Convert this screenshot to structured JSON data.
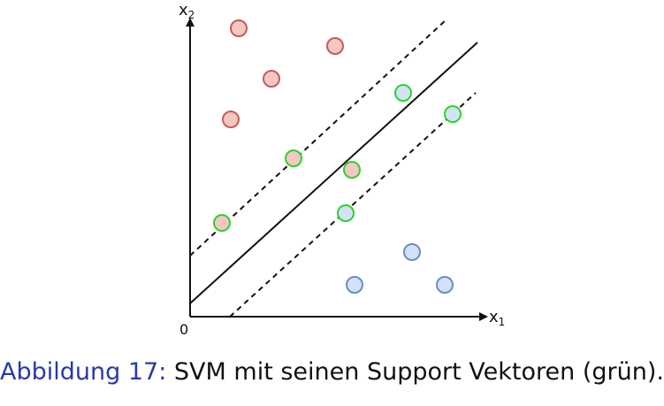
{
  "figure": {
    "axis_labels": {
      "x_main": "x",
      "x_sub": "1",
      "y_main": "x",
      "y_sub": "2",
      "origin": "0"
    },
    "colors": {
      "red_fill": "#f4c7c3",
      "red_stroke": "#c95a55",
      "blue_fill": "#d3e3f7",
      "blue_stroke": "#6c8ebf",
      "support_stroke": "#2bd42b",
      "line": "#111111"
    },
    "points": [
      {
        "class": "red",
        "support": false
      },
      {
        "class": "red",
        "support": false
      },
      {
        "class": "red",
        "support": false
      },
      {
        "class": "red",
        "support": false
      },
      {
        "class": "red",
        "support": true
      },
      {
        "class": "red",
        "support": true
      },
      {
        "class": "red",
        "support": true
      },
      {
        "class": "blue",
        "support": true
      },
      {
        "class": "blue",
        "support": true
      },
      {
        "class": "blue",
        "support": true
      },
      {
        "class": "blue",
        "support": false
      },
      {
        "class": "blue",
        "support": false
      },
      {
        "class": "blue",
        "support": false
      }
    ],
    "lines": [
      "upper-margin",
      "decision-boundary",
      "lower-margin"
    ]
  },
  "caption": {
    "label": "Abbildung 17:",
    "text": " SVM mit seinen Support Vektoren (grün)."
  }
}
